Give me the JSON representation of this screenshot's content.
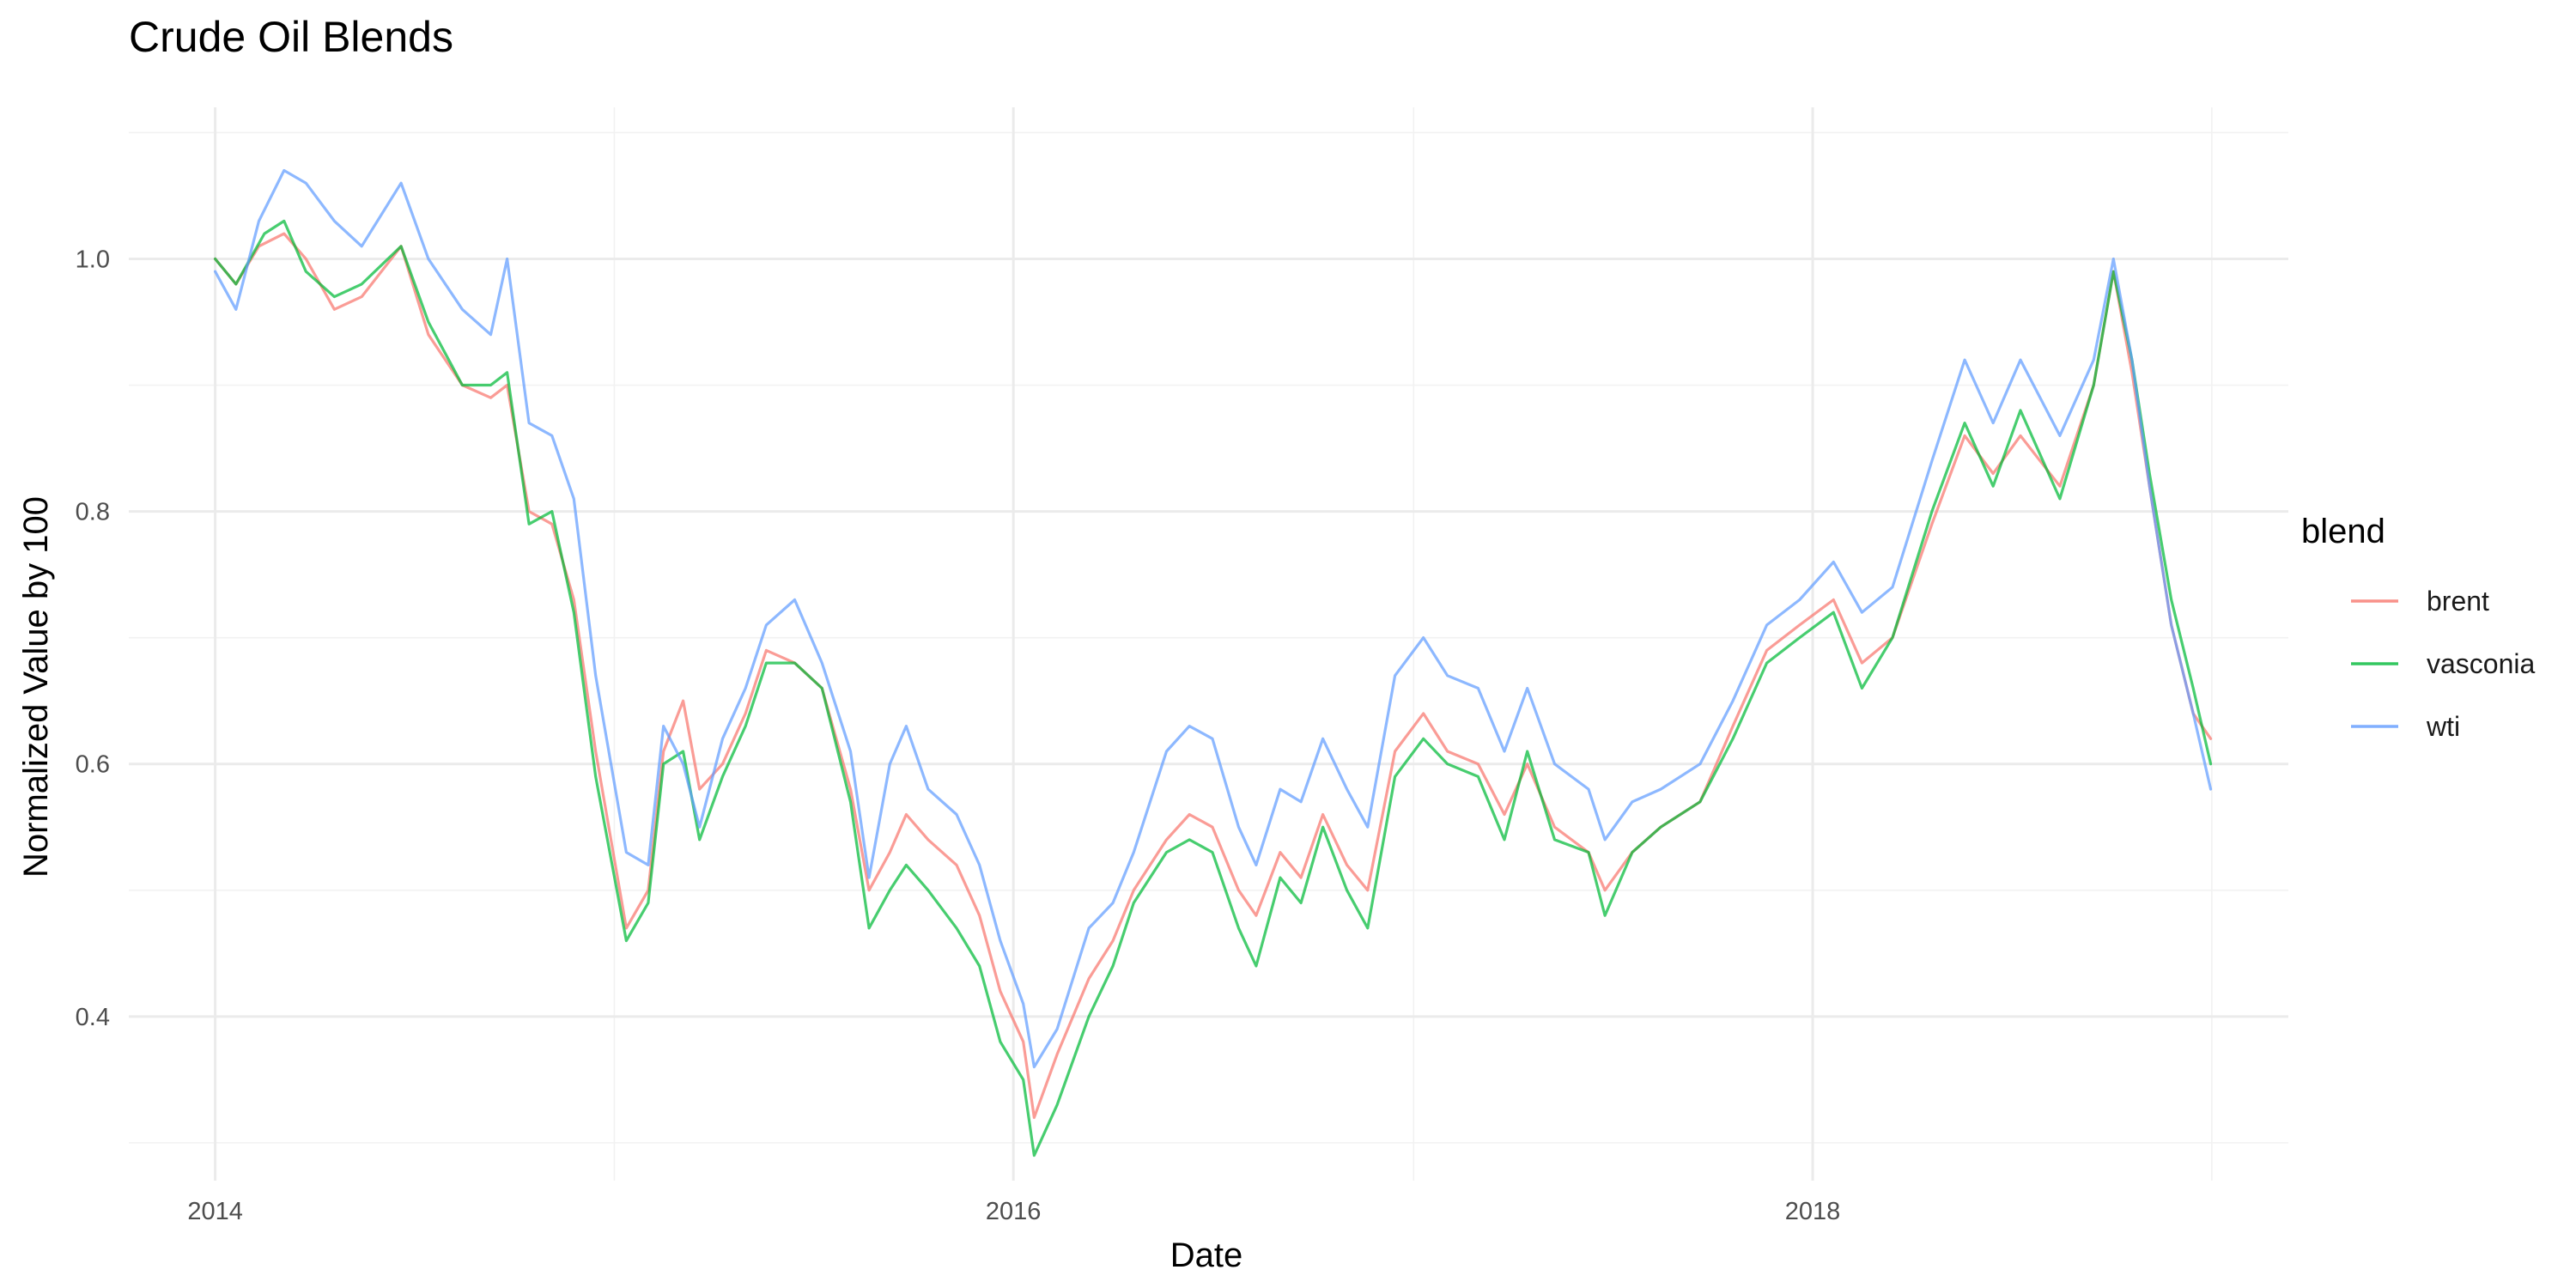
{
  "chart_data": {
    "type": "line",
    "title": "Crude Oil Blends",
    "xlabel": "Date",
    "ylabel": "Normalized Value by 100",
    "x_axis_type": "date",
    "xlim": [
      "2013-10-14",
      "2019-03-12"
    ],
    "ylim": [
      0.27,
      1.12
    ],
    "x_ticks": [
      {
        "label": "2014",
        "date": "2014-01-01"
      },
      {
        "label": "2016",
        "date": "2016-01-01"
      },
      {
        "label": "2018",
        "date": "2018-01-01"
      }
    ],
    "x_minor_ticks": [
      "2015-01-01",
      "2017-01-01",
      "2019-01-01"
    ],
    "y_ticks": [
      0.4,
      0.6,
      0.8,
      1.0
    ],
    "y_tick_labels": [
      "0.4",
      "0.6",
      "0.8",
      "1.0"
    ],
    "y_minor_ticks": [
      0.3,
      0.5,
      0.7,
      0.9,
      1.1
    ],
    "grid": true,
    "legend": {
      "title": "blend",
      "position": "right"
    },
    "series": [
      {
        "name": "brent",
        "color": "#F8766D",
        "points": [
          [
            "2014-01-01",
            1.0
          ],
          [
            "2014-01-20",
            0.98
          ],
          [
            "2014-02-10",
            1.01
          ],
          [
            "2014-03-05",
            1.02
          ],
          [
            "2014-03-25",
            1.0
          ],
          [
            "2014-04-20",
            0.96
          ],
          [
            "2014-05-15",
            0.97
          ],
          [
            "2014-06-20",
            1.01
          ],
          [
            "2014-07-15",
            0.94
          ],
          [
            "2014-08-15",
            0.9
          ],
          [
            "2014-09-10",
            0.89
          ],
          [
            "2014-09-25",
            0.9
          ],
          [
            "2014-10-15",
            0.8
          ],
          [
            "2014-11-05",
            0.79
          ],
          [
            "2014-11-25",
            0.73
          ],
          [
            "2014-12-15",
            0.61
          ],
          [
            "2015-01-12",
            0.47
          ],
          [
            "2015-02-01",
            0.5
          ],
          [
            "2015-02-15",
            0.61
          ],
          [
            "2015-03-05",
            0.65
          ],
          [
            "2015-03-20",
            0.58
          ],
          [
            "2015-04-10",
            0.6
          ],
          [
            "2015-05-01",
            0.64
          ],
          [
            "2015-05-20",
            0.69
          ],
          [
            "2015-06-15",
            0.68
          ],
          [
            "2015-07-10",
            0.66
          ],
          [
            "2015-08-05",
            0.58
          ],
          [
            "2015-08-22",
            0.5
          ],
          [
            "2015-09-10",
            0.53
          ],
          [
            "2015-09-25",
            0.56
          ],
          [
            "2015-10-15",
            0.54
          ],
          [
            "2015-11-10",
            0.52
          ],
          [
            "2015-12-01",
            0.48
          ],
          [
            "2015-12-20",
            0.42
          ],
          [
            "2016-01-10",
            0.38
          ],
          [
            "2016-01-20",
            0.32
          ],
          [
            "2016-02-10",
            0.37
          ],
          [
            "2016-03-10",
            0.43
          ],
          [
            "2016-04-01",
            0.46
          ],
          [
            "2016-04-20",
            0.5
          ],
          [
            "2016-05-20",
            0.54
          ],
          [
            "2016-06-10",
            0.56
          ],
          [
            "2016-07-01",
            0.55
          ],
          [
            "2016-07-25",
            0.5
          ],
          [
            "2016-08-10",
            0.48
          ],
          [
            "2016-09-01",
            0.53
          ],
          [
            "2016-09-20",
            0.51
          ],
          [
            "2016-10-10",
            0.56
          ],
          [
            "2016-11-01",
            0.52
          ],
          [
            "2016-11-20",
            0.5
          ],
          [
            "2016-12-15",
            0.61
          ],
          [
            "2017-01-10",
            0.64
          ],
          [
            "2017-02-01",
            0.61
          ],
          [
            "2017-03-01",
            0.6
          ],
          [
            "2017-03-25",
            0.56
          ],
          [
            "2017-04-15",
            0.6
          ],
          [
            "2017-05-10",
            0.55
          ],
          [
            "2017-06-10",
            0.53
          ],
          [
            "2017-06-25",
            0.5
          ],
          [
            "2017-07-20",
            0.53
          ],
          [
            "2017-08-15",
            0.55
          ],
          [
            "2017-09-20",
            0.57
          ],
          [
            "2017-10-20",
            0.63
          ],
          [
            "2017-11-20",
            0.69
          ],
          [
            "2017-12-20",
            0.71
          ],
          [
            "2018-01-20",
            0.73
          ],
          [
            "2018-02-15",
            0.68
          ],
          [
            "2018-03-15",
            0.7
          ],
          [
            "2018-04-20",
            0.79
          ],
          [
            "2018-05-20",
            0.86
          ],
          [
            "2018-06-15",
            0.83
          ],
          [
            "2018-07-10",
            0.86
          ],
          [
            "2018-08-15",
            0.82
          ],
          [
            "2018-09-15",
            0.9
          ],
          [
            "2018-10-03",
            0.99
          ],
          [
            "2018-10-20",
            0.91
          ],
          [
            "2018-11-05",
            0.82
          ],
          [
            "2018-11-25",
            0.71
          ],
          [
            "2018-12-15",
            0.64
          ],
          [
            "2018-12-31",
            0.62
          ]
        ]
      },
      {
        "name": "vasconia",
        "color": "#00BA38",
        "points": [
          [
            "2014-01-01",
            1.0
          ],
          [
            "2014-01-20",
            0.98
          ],
          [
            "2014-02-15",
            1.02
          ],
          [
            "2014-03-05",
            1.03
          ],
          [
            "2014-03-25",
            0.99
          ],
          [
            "2014-04-20",
            0.97
          ],
          [
            "2014-05-15",
            0.98
          ],
          [
            "2014-06-20",
            1.01
          ],
          [
            "2014-07-15",
            0.95
          ],
          [
            "2014-08-15",
            0.9
          ],
          [
            "2014-09-10",
            0.9
          ],
          [
            "2014-09-25",
            0.91
          ],
          [
            "2014-10-15",
            0.79
          ],
          [
            "2014-11-05",
            0.8
          ],
          [
            "2014-11-25",
            0.72
          ],
          [
            "2014-12-15",
            0.59
          ],
          [
            "2015-01-12",
            0.46
          ],
          [
            "2015-02-01",
            0.49
          ],
          [
            "2015-02-15",
            0.6
          ],
          [
            "2015-03-05",
            0.61
          ],
          [
            "2015-03-20",
            0.54
          ],
          [
            "2015-04-10",
            0.59
          ],
          [
            "2015-05-01",
            0.63
          ],
          [
            "2015-05-20",
            0.68
          ],
          [
            "2015-06-15",
            0.68
          ],
          [
            "2015-07-10",
            0.66
          ],
          [
            "2015-08-05",
            0.57
          ],
          [
            "2015-08-22",
            0.47
          ],
          [
            "2015-09-10",
            0.5
          ],
          [
            "2015-09-25",
            0.52
          ],
          [
            "2015-10-15",
            0.5
          ],
          [
            "2015-11-10",
            0.47
          ],
          [
            "2015-12-01",
            0.44
          ],
          [
            "2015-12-20",
            0.38
          ],
          [
            "2016-01-10",
            0.35
          ],
          [
            "2016-01-20",
            0.29
          ],
          [
            "2016-02-10",
            0.33
          ],
          [
            "2016-03-10",
            0.4
          ],
          [
            "2016-04-01",
            0.44
          ],
          [
            "2016-04-20",
            0.49
          ],
          [
            "2016-05-20",
            0.53
          ],
          [
            "2016-06-10",
            0.54
          ],
          [
            "2016-07-01",
            0.53
          ],
          [
            "2016-07-25",
            0.47
          ],
          [
            "2016-08-10",
            0.44
          ],
          [
            "2016-09-01",
            0.51
          ],
          [
            "2016-09-20",
            0.49
          ],
          [
            "2016-10-10",
            0.55
          ],
          [
            "2016-11-01",
            0.5
          ],
          [
            "2016-11-20",
            0.47
          ],
          [
            "2016-12-15",
            0.59
          ],
          [
            "2017-01-10",
            0.62
          ],
          [
            "2017-02-01",
            0.6
          ],
          [
            "2017-03-01",
            0.59
          ],
          [
            "2017-03-25",
            0.54
          ],
          [
            "2017-04-15",
            0.61
          ],
          [
            "2017-05-10",
            0.54
          ],
          [
            "2017-06-10",
            0.53
          ],
          [
            "2017-06-25",
            0.48
          ],
          [
            "2017-07-20",
            0.53
          ],
          [
            "2017-08-15",
            0.55
          ],
          [
            "2017-09-20",
            0.57
          ],
          [
            "2017-10-20",
            0.62
          ],
          [
            "2017-11-20",
            0.68
          ],
          [
            "2017-12-20",
            0.7
          ],
          [
            "2018-01-20",
            0.72
          ],
          [
            "2018-02-15",
            0.66
          ],
          [
            "2018-03-15",
            0.7
          ],
          [
            "2018-04-20",
            0.8
          ],
          [
            "2018-05-20",
            0.87
          ],
          [
            "2018-06-15",
            0.82
          ],
          [
            "2018-07-10",
            0.88
          ],
          [
            "2018-08-15",
            0.81
          ],
          [
            "2018-09-15",
            0.9
          ],
          [
            "2018-10-03",
            0.99
          ],
          [
            "2018-10-20",
            0.92
          ],
          [
            "2018-11-05",
            0.83
          ],
          [
            "2018-11-25",
            0.73
          ],
          [
            "2018-12-15",
            0.66
          ],
          [
            "2018-12-31",
            0.6
          ]
        ]
      },
      {
        "name": "wti",
        "color": "#619CFF",
        "points": [
          [
            "2014-01-01",
            0.99
          ],
          [
            "2014-01-20",
            0.96
          ],
          [
            "2014-02-10",
            1.03
          ],
          [
            "2014-03-05",
            1.07
          ],
          [
            "2014-03-25",
            1.06
          ],
          [
            "2014-04-20",
            1.03
          ],
          [
            "2014-05-15",
            1.01
          ],
          [
            "2014-06-20",
            1.06
          ],
          [
            "2014-07-15",
            1.0
          ],
          [
            "2014-08-15",
            0.96
          ],
          [
            "2014-09-10",
            0.94
          ],
          [
            "2014-09-25",
            1.0
          ],
          [
            "2014-10-15",
            0.87
          ],
          [
            "2014-11-05",
            0.86
          ],
          [
            "2014-11-25",
            0.81
          ],
          [
            "2014-12-15",
            0.67
          ],
          [
            "2015-01-12",
            0.53
          ],
          [
            "2015-02-01",
            0.52
          ],
          [
            "2015-02-15",
            0.63
          ],
          [
            "2015-03-05",
            0.6
          ],
          [
            "2015-03-20",
            0.55
          ],
          [
            "2015-04-10",
            0.62
          ],
          [
            "2015-05-01",
            0.66
          ],
          [
            "2015-05-20",
            0.71
          ],
          [
            "2015-06-15",
            0.73
          ],
          [
            "2015-07-10",
            0.68
          ],
          [
            "2015-08-05",
            0.61
          ],
          [
            "2015-08-22",
            0.51
          ],
          [
            "2015-09-10",
            0.6
          ],
          [
            "2015-09-25",
            0.63
          ],
          [
            "2015-10-15",
            0.58
          ],
          [
            "2015-11-10",
            0.56
          ],
          [
            "2015-12-01",
            0.52
          ],
          [
            "2015-12-20",
            0.46
          ],
          [
            "2016-01-10",
            0.41
          ],
          [
            "2016-01-20",
            0.36
          ],
          [
            "2016-02-10",
            0.39
          ],
          [
            "2016-03-10",
            0.47
          ],
          [
            "2016-04-01",
            0.49
          ],
          [
            "2016-04-20",
            0.53
          ],
          [
            "2016-05-20",
            0.61
          ],
          [
            "2016-06-10",
            0.63
          ],
          [
            "2016-07-01",
            0.62
          ],
          [
            "2016-07-25",
            0.55
          ],
          [
            "2016-08-10",
            0.52
          ],
          [
            "2016-09-01",
            0.58
          ],
          [
            "2016-09-20",
            0.57
          ],
          [
            "2016-10-10",
            0.62
          ],
          [
            "2016-11-01",
            0.58
          ],
          [
            "2016-11-20",
            0.55
          ],
          [
            "2016-12-15",
            0.67
          ],
          [
            "2017-01-10",
            0.7
          ],
          [
            "2017-02-01",
            0.67
          ],
          [
            "2017-03-01",
            0.66
          ],
          [
            "2017-03-25",
            0.61
          ],
          [
            "2017-04-15",
            0.66
          ],
          [
            "2017-05-10",
            0.6
          ],
          [
            "2017-06-10",
            0.58
          ],
          [
            "2017-06-25",
            0.54
          ],
          [
            "2017-07-20",
            0.57
          ],
          [
            "2017-08-15",
            0.58
          ],
          [
            "2017-09-20",
            0.6
          ],
          [
            "2017-10-20",
            0.65
          ],
          [
            "2017-11-20",
            0.71
          ],
          [
            "2017-12-20",
            0.73
          ],
          [
            "2018-01-20",
            0.76
          ],
          [
            "2018-02-15",
            0.72
          ],
          [
            "2018-03-15",
            0.74
          ],
          [
            "2018-04-20",
            0.84
          ],
          [
            "2018-05-20",
            0.92
          ],
          [
            "2018-06-15",
            0.87
          ],
          [
            "2018-07-10",
            0.92
          ],
          [
            "2018-08-15",
            0.86
          ],
          [
            "2018-09-15",
            0.92
          ],
          [
            "2018-10-03",
            1.0
          ],
          [
            "2018-10-20",
            0.92
          ],
          [
            "2018-11-05",
            0.82
          ],
          [
            "2018-11-25",
            0.71
          ],
          [
            "2018-12-15",
            0.64
          ],
          [
            "2018-12-31",
            0.58
          ]
        ]
      }
    ]
  }
}
